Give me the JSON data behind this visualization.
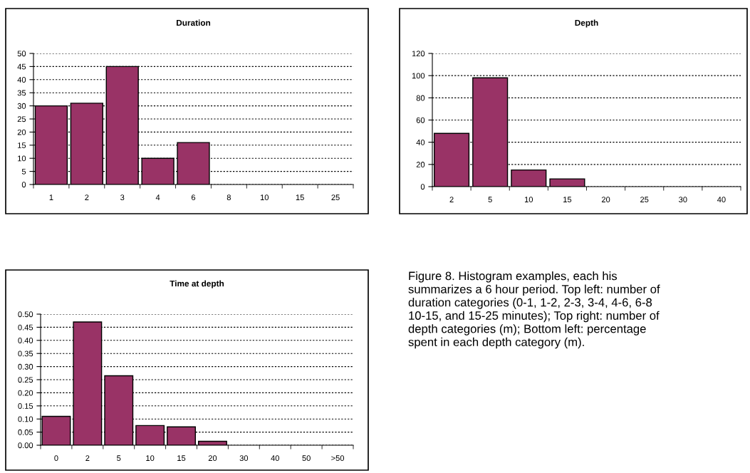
{
  "chart_data": [
    {
      "type": "bar",
      "title": "Duration",
      "categories": [
        "1",
        "2",
        "3",
        "4",
        "6",
        "8",
        "10",
        "15",
        "25"
      ],
      "values": [
        30,
        31,
        45,
        10,
        16,
        0,
        0,
        0,
        0
      ],
      "color": "#993366",
      "ylim": [
        0,
        50
      ],
      "yticks": [
        0,
        5,
        10,
        15,
        20,
        25,
        30,
        35,
        40,
        45,
        50
      ],
      "grid": "y"
    },
    {
      "type": "bar",
      "title": "Depth",
      "categories": [
        "2",
        "5",
        "10",
        "15",
        "20",
        "25",
        "30",
        "40"
      ],
      "values": [
        48,
        98,
        15,
        7,
        0,
        0,
        0,
        0
      ],
      "color": "#993366",
      "ylim": [
        0,
        120
      ],
      "yticks": [
        0,
        20,
        40,
        60,
        80,
        100,
        120
      ],
      "grid": "y"
    },
    {
      "type": "bar",
      "title": "Time at depth",
      "categories": [
        "0",
        "2",
        "5",
        "10",
        "15",
        "20",
        "30",
        "40",
        "50",
        ">50"
      ],
      "values": [
        0.11,
        0.47,
        0.265,
        0.075,
        0.07,
        0.015,
        0,
        0,
        0,
        0
      ],
      "color": "#993366",
      "ylim": [
        0,
        0.5
      ],
      "yticks": [
        {
          "value": 0,
          "label": "0.00"
        },
        {
          "value": 0.05,
          "label": "0.05"
        },
        {
          "value": 0.1,
          "label": "0.10"
        },
        {
          "value": 0.15,
          "label": "0.15"
        },
        {
          "value": 0.2,
          "label": "0.20"
        },
        {
          "value": 0.25,
          "label": "0.25"
        },
        {
          "value": 0.3,
          "label": "0.30"
        },
        {
          "value": 0.35,
          "label": "0.35"
        },
        {
          "value": 0.4,
          "label": "0.40"
        },
        {
          "value": 0.45,
          "label": "0.45"
        },
        {
          "value": 0.5,
          "label": "0.50"
        }
      ],
      "grid": "y",
      "annotations": [
        "Figure 8. Histogram examples, each his\nsummarizes a 6 hour period. Top left: number of\nduration categories (0-1, 1-2, 2-3, 3-4, 4-6, 6-8\n10-15, and 15-25 minutes); Top right: number of\ndepth categories (m); Bottom left: percentage\nspent in each depth category (m)."
      ]
    }
  ]
}
